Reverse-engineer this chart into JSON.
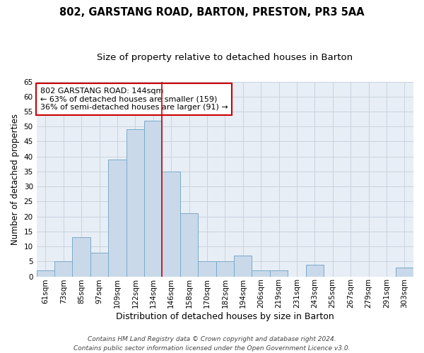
{
  "title1": "802, GARSTANG ROAD, BARTON, PRESTON, PR3 5AA",
  "title2": "Size of property relative to detached houses in Barton",
  "xlabel": "Distribution of detached houses by size in Barton",
  "ylabel": "Number of detached properties",
  "categories": [
    "61sqm",
    "73sqm",
    "85sqm",
    "97sqm",
    "109sqm",
    "122sqm",
    "134sqm",
    "146sqm",
    "158sqm",
    "170sqm",
    "182sqm",
    "194sqm",
    "206sqm",
    "219sqm",
    "231sqm",
    "243sqm",
    "255sqm",
    "267sqm",
    "279sqm",
    "291sqm",
    "303sqm"
  ],
  "values": [
    2,
    5,
    13,
    8,
    39,
    49,
    52,
    35,
    21,
    5,
    5,
    7,
    2,
    2,
    0,
    4,
    0,
    0,
    0,
    0,
    3
  ],
  "bar_color": "#c9d9ea",
  "bar_edge_color": "#7aaac8",
  "annotation_text": "802 GARSTANG ROAD: 144sqm\n← 63% of detached houses are smaller (159)\n36% of semi-detached houses are larger (91) →",
  "annotation_box_color": "white",
  "annotation_box_edge_color": "#cc0000",
  "vline_color": "#cc0000",
  "vline_x_index": 6,
  "ylim": [
    0,
    65
  ],
  "grid_color": "#c8d4e0",
  "bg_color": "#e8eef5",
  "footer": "Contains HM Land Registry data © Crown copyright and database right 2024.\nContains public sector information licensed under the Open Government Licence v3.0.",
  "title1_fontsize": 10.5,
  "title2_fontsize": 9.5,
  "xlabel_fontsize": 9,
  "ylabel_fontsize": 8.5,
  "tick_fontsize": 7.5,
  "annotation_fontsize": 8,
  "footer_fontsize": 6.5
}
